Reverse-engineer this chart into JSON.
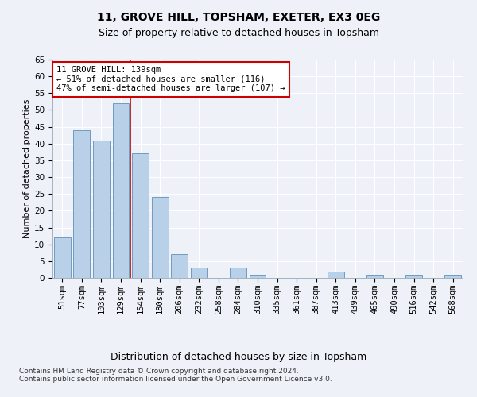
{
  "title1": "11, GROVE HILL, TOPSHAM, EXETER, EX3 0EG",
  "title2": "Size of property relative to detached houses in Topsham",
  "xlabel": "Distribution of detached houses by size in Topsham",
  "ylabel": "Number of detached properties",
  "categories": [
    "51sqm",
    "77sqm",
    "103sqm",
    "129sqm",
    "154sqm",
    "180sqm",
    "206sqm",
    "232sqm",
    "258sqm",
    "284sqm",
    "310sqm",
    "335sqm",
    "361sqm",
    "387sqm",
    "413sqm",
    "439sqm",
    "465sqm",
    "490sqm",
    "516sqm",
    "542sqm",
    "568sqm"
  ],
  "values": [
    12,
    44,
    41,
    52,
    37,
    24,
    7,
    3,
    0,
    3,
    1,
    0,
    0,
    0,
    2,
    0,
    1,
    0,
    1,
    0,
    1
  ],
  "bar_color": "#b8d0e8",
  "bar_edge_color": "#6090b8",
  "ylim": [
    0,
    65
  ],
  "yticks": [
    0,
    5,
    10,
    15,
    20,
    25,
    30,
    35,
    40,
    45,
    50,
    55,
    60,
    65
  ],
  "red_line_x": 3.5,
  "annotation_text": "11 GROVE HILL: 139sqm\n← 51% of detached houses are smaller (116)\n47% of semi-detached houses are larger (107) →",
  "annotation_box_color": "#ffffff",
  "annotation_border_color": "#cc0000",
  "footer1": "Contains HM Land Registry data © Crown copyright and database right 2024.",
  "footer2": "Contains public sector information licensed under the Open Government Licence v3.0.",
  "background_color": "#eef2f8",
  "grid_color": "#ffffff",
  "title1_fontsize": 10,
  "title2_fontsize": 9,
  "xlabel_fontsize": 9,
  "ylabel_fontsize": 8,
  "tick_fontsize": 7.5,
  "annotation_fontsize": 7.5,
  "footer_fontsize": 6.5
}
